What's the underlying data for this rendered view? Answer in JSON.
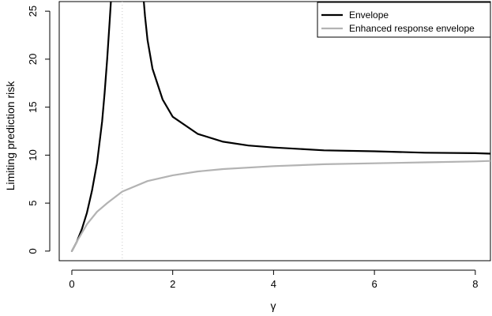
{
  "chart_data": {
    "type": "line",
    "title": "",
    "xlabel": "γ",
    "ylabel": "Limiting prediction risk",
    "xlim": [
      -0.25,
      8.3
    ],
    "ylim": [
      -1.0,
      26
    ],
    "x_ticks": [
      "0",
      "2",
      "4",
      "6",
      "8"
    ],
    "y_ticks": [
      "0",
      "5",
      "10",
      "15",
      "20",
      "25"
    ],
    "reference_line": {
      "x": 1,
      "style": "dotted"
    },
    "legend": {
      "placement": "top-right"
    },
    "series": [
      {
        "name": "Envelope",
        "color": "#000000",
        "segments": [
          {
            "x": [
              0,
              0.1,
              0.2,
              0.3,
              0.4,
              0.5,
              0.6,
              0.65,
              0.7,
              0.75,
              0.78
            ],
            "y": [
              0,
              1.0,
              2.3,
              4.0,
              6.3,
              9.2,
              13.5,
              16.5,
              20.0,
              24.0,
              26.5
            ]
          },
          {
            "x": [
              1.42,
              1.45,
              1.5,
              1.6,
              1.8,
              2.0,
              2.5,
              3.0,
              3.5,
              4.0,
              5.0,
              6.0,
              7.0,
              8.0,
              8.3
            ],
            "y": [
              26.5,
              24.5,
              22.0,
              19.0,
              15.8,
              14.0,
              12.2,
              11.4,
              11.0,
              10.8,
              10.5,
              10.4,
              10.25,
              10.2,
              10.15
            ]
          }
        ]
      },
      {
        "name": "Enhanced response envelope",
        "color": "#b3b3b3",
        "segments": [
          {
            "x": [
              0,
              0.1,
              0.2,
              0.3,
              0.5,
              0.7,
              1.0,
              1.5,
              2.0,
              2.5,
              3.0,
              4.0,
              5.0,
              6.0,
              7.0,
              8.0,
              8.3
            ],
            "y": [
              0,
              1.0,
              1.9,
              2.8,
              4.1,
              5.0,
              6.2,
              7.3,
              7.9,
              8.3,
              8.55,
              8.85,
              9.05,
              9.15,
              9.25,
              9.35,
              9.4
            ]
          }
        ]
      }
    ]
  }
}
